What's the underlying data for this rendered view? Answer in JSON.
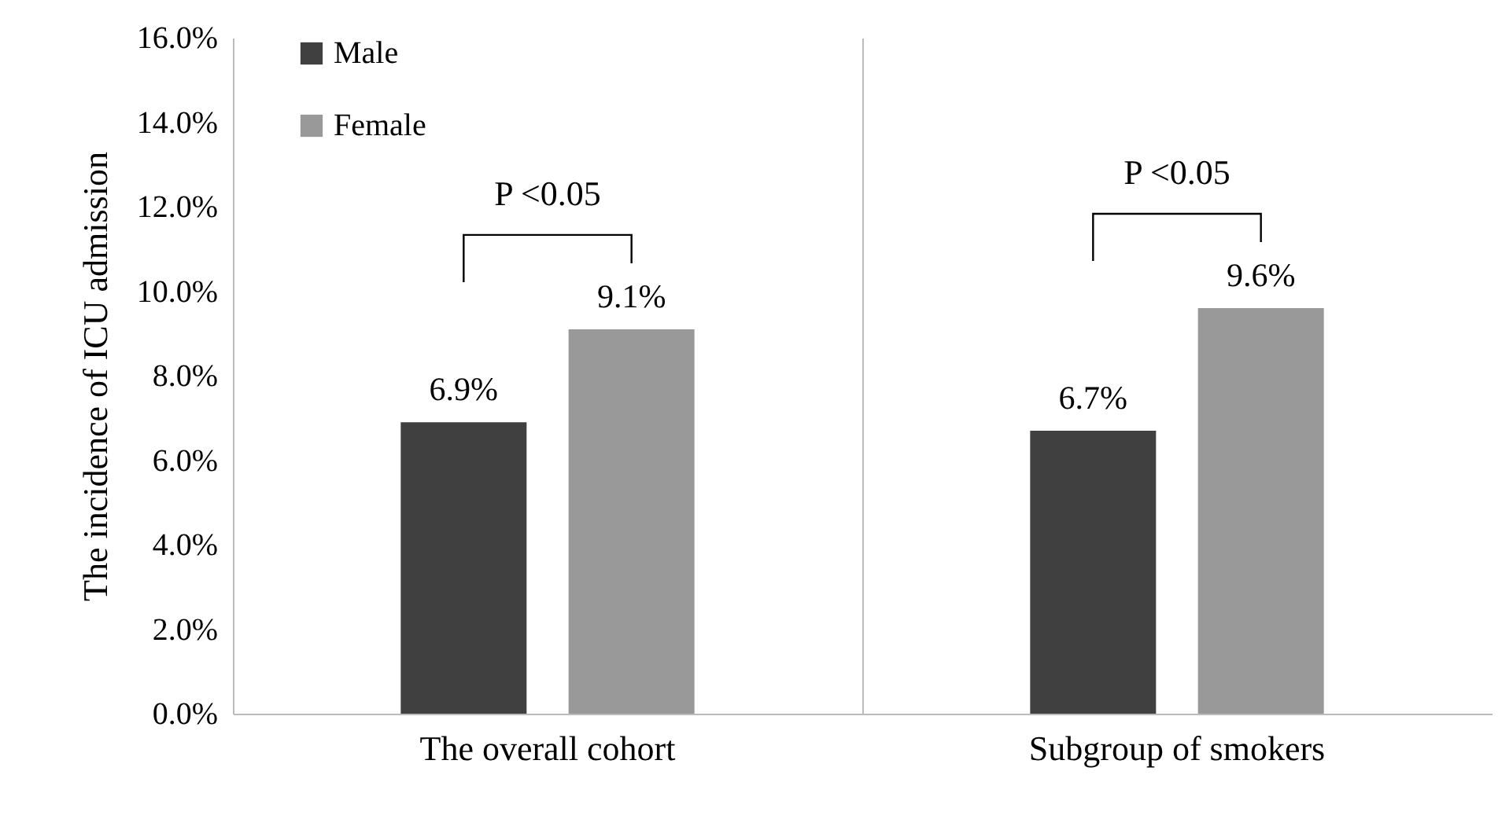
{
  "chart_data": {
    "type": "bar",
    "ylabel": "The incidence of ICU admission",
    "categories": [
      "The overall cohort",
      "Subgroup of smokers"
    ],
    "series": [
      {
        "name": "Male",
        "color": "#404040",
        "values": [
          6.9,
          6.7
        ],
        "value_labels": [
          "6.9%",
          "6.7%"
        ]
      },
      {
        "name": "Female",
        "color": "#999999",
        "values": [
          9.1,
          9.6
        ],
        "value_labels": [
          "9.1%",
          "9.6%"
        ]
      }
    ],
    "ylim": [
      0,
      16
    ],
    "yticks": [
      {
        "value": 0,
        "label": "0.0%"
      },
      {
        "value": 2,
        "label": "2.0%"
      },
      {
        "value": 4,
        "label": "4.0%"
      },
      {
        "value": 6,
        "label": "6.0%"
      },
      {
        "value": 8,
        "label": "8.0%"
      },
      {
        "value": 10,
        "label": "10.0%"
      },
      {
        "value": 12,
        "label": "12.0%"
      },
      {
        "value": 14,
        "label": "14.0%"
      },
      {
        "value": 16,
        "label": "16.0%"
      }
    ],
    "annotations": [
      "P <0.05",
      "P <0.05"
    ],
    "grid": "x",
    "legend": "top left"
  }
}
